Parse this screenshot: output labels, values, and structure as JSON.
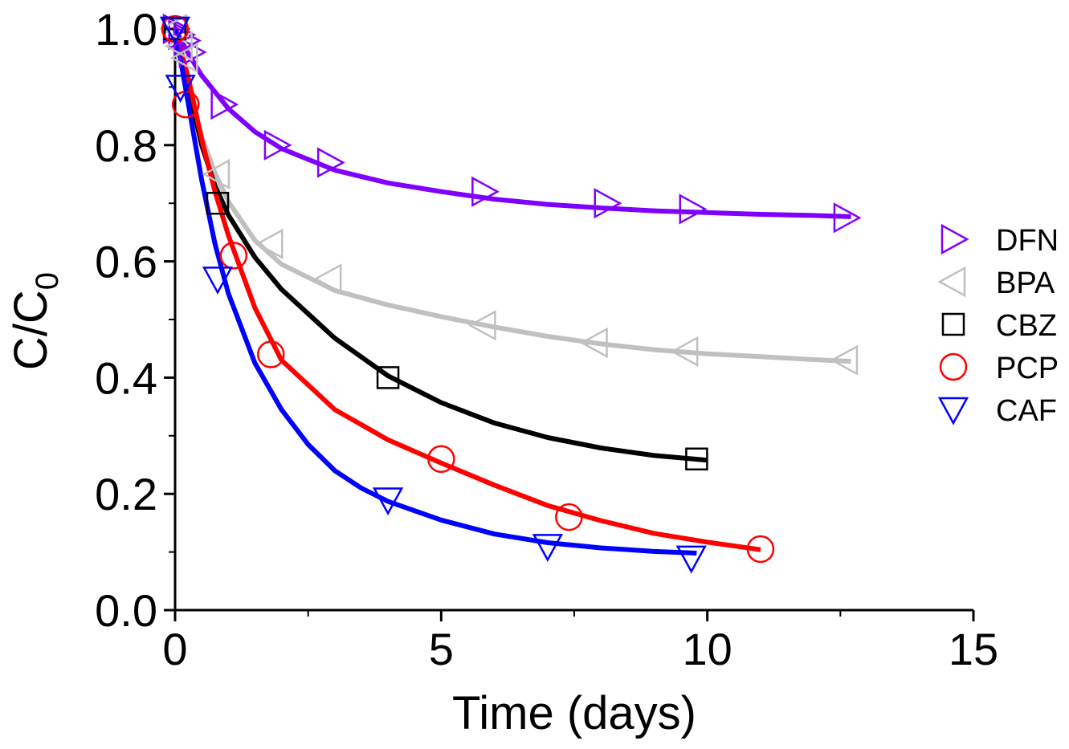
{
  "chart_data": {
    "type": "scatter",
    "xlabel": "Time (days)",
    "ylabel": "C/C",
    "ylabel_subscript": "0",
    "xlim": [
      0,
      15
    ],
    "ylim": [
      0,
      1.0
    ],
    "x_ticks": [
      0,
      5,
      10,
      15
    ],
    "x_tick_labels": [
      "0",
      "5",
      "10",
      "15"
    ],
    "y_ticks": [
      0,
      0.2,
      0.4,
      0.6,
      0.8,
      1.0
    ],
    "y_tick_labels": [
      "0.0",
      "0.2",
      "0.4",
      "0.6",
      "0.8",
      "1.0"
    ],
    "grid": false,
    "legend_position": "right",
    "series": [
      {
        "name": "DFN",
        "color": "#8000ff",
        "marker": "triangle-right",
        "points": [
          [
            0.0,
            1.0
          ],
          [
            0.1,
            0.99
          ],
          [
            0.2,
            0.98
          ],
          [
            0.3,
            0.96
          ],
          [
            0.9,
            0.87
          ],
          [
            1.9,
            0.8
          ],
          [
            2.9,
            0.77
          ],
          [
            5.8,
            0.72
          ],
          [
            8.1,
            0.7
          ],
          [
            9.7,
            0.69
          ],
          [
            12.6,
            0.675
          ]
        ],
        "fit": [
          [
            0.0,
            1.0
          ],
          [
            0.25,
            0.957
          ],
          [
            0.5,
            0.92
          ],
          [
            1.0,
            0.863
          ],
          [
            1.5,
            0.823
          ],
          [
            2.0,
            0.794
          ],
          [
            3.0,
            0.757
          ],
          [
            4.0,
            0.735
          ],
          [
            5.0,
            0.72
          ],
          [
            6.0,
            0.707
          ],
          [
            7.0,
            0.698
          ],
          [
            8.0,
            0.692
          ],
          [
            9.0,
            0.687
          ],
          [
            10.0,
            0.684
          ],
          [
            11.0,
            0.681
          ],
          [
            12.0,
            0.679
          ],
          [
            12.7,
            0.677
          ]
        ]
      },
      {
        "name": "BPA",
        "color": "#c0c0c0",
        "marker": "triangle-left",
        "points": [
          [
            0.0,
            1.0
          ],
          [
            0.1,
            0.97
          ],
          [
            0.2,
            0.95
          ],
          [
            0.8,
            0.75
          ],
          [
            1.8,
            0.63
          ],
          [
            2.9,
            0.57
          ],
          [
            5.8,
            0.49
          ],
          [
            7.9,
            0.46
          ],
          [
            9.6,
            0.445
          ],
          [
            12.6,
            0.43
          ]
        ],
        "fit": [
          [
            0.0,
            1.0
          ],
          [
            0.25,
            0.897
          ],
          [
            0.5,
            0.815
          ],
          [
            0.75,
            0.752
          ],
          [
            1.0,
            0.703
          ],
          [
            1.5,
            0.636
          ],
          [
            2.0,
            0.595
          ],
          [
            3.0,
            0.55
          ],
          [
            4.0,
            0.525
          ],
          [
            5.0,
            0.505
          ],
          [
            6.0,
            0.487
          ],
          [
            7.0,
            0.471
          ],
          [
            8.0,
            0.458
          ],
          [
            9.0,
            0.448
          ],
          [
            10.0,
            0.441
          ],
          [
            11.0,
            0.436
          ],
          [
            12.0,
            0.431
          ],
          [
            12.7,
            0.428
          ]
        ]
      },
      {
        "name": "CBZ",
        "color": "#000000",
        "marker": "square",
        "points": [
          [
            0.0,
            1.0
          ],
          [
            0.8,
            0.7
          ],
          [
            4.0,
            0.4
          ],
          [
            9.8,
            0.26
          ]
        ],
        "fit": [
          [
            0.0,
            1.0
          ],
          [
            0.5,
            0.8
          ],
          [
            0.75,
            0.73
          ],
          [
            1.0,
            0.68
          ],
          [
            1.5,
            0.607
          ],
          [
            2.0,
            0.552
          ],
          [
            3.0,
            0.468
          ],
          [
            4.0,
            0.403
          ],
          [
            5.0,
            0.357
          ],
          [
            6.0,
            0.322
          ],
          [
            7.0,
            0.297
          ],
          [
            8.0,
            0.279
          ],
          [
            9.0,
            0.266
          ],
          [
            10.0,
            0.258
          ]
        ]
      },
      {
        "name": "PCP",
        "color": "#ff0000",
        "marker": "circle",
        "points": [
          [
            0.0,
            1.0
          ],
          [
            0.2,
            0.87
          ],
          [
            1.1,
            0.61
          ],
          [
            1.8,
            0.44
          ],
          [
            5.0,
            0.26
          ],
          [
            7.4,
            0.16
          ],
          [
            11.0,
            0.105
          ]
        ],
        "fit": [
          [
            0.0,
            1.0
          ],
          [
            0.25,
            0.915
          ],
          [
            0.5,
            0.81
          ],
          [
            0.75,
            0.72
          ],
          [
            1.0,
            0.645
          ],
          [
            1.5,
            0.52
          ],
          [
            2.0,
            0.43
          ],
          [
            3.0,
            0.345
          ],
          [
            4.0,
            0.293
          ],
          [
            5.0,
            0.253
          ],
          [
            6.0,
            0.215
          ],
          [
            7.0,
            0.18
          ],
          [
            8.0,
            0.154
          ],
          [
            9.0,
            0.132
          ],
          [
            10.0,
            0.117
          ],
          [
            11.0,
            0.104
          ]
        ]
      },
      {
        "name": "CAF",
        "color": "#0000ff",
        "marker": "triangle-down",
        "points": [
          [
            0.0,
            1.0
          ],
          [
            0.1,
            0.9
          ],
          [
            0.8,
            0.57
          ],
          [
            4.0,
            0.19
          ],
          [
            7.0,
            0.11
          ],
          [
            9.7,
            0.09
          ]
        ],
        "fit": [
          [
            0.0,
            1.0
          ],
          [
            0.25,
            0.87
          ],
          [
            0.5,
            0.74
          ],
          [
            0.75,
            0.63
          ],
          [
            1.0,
            0.545
          ],
          [
            1.5,
            0.425
          ],
          [
            2.0,
            0.345
          ],
          [
            2.5,
            0.285
          ],
          [
            3.0,
            0.24
          ],
          [
            3.5,
            0.21
          ],
          [
            4.0,
            0.187
          ],
          [
            5.0,
            0.155
          ],
          [
            6.0,
            0.131
          ],
          [
            7.0,
            0.116
          ],
          [
            8.0,
            0.107
          ],
          [
            9.0,
            0.101
          ],
          [
            9.8,
            0.098
          ]
        ]
      }
    ]
  }
}
